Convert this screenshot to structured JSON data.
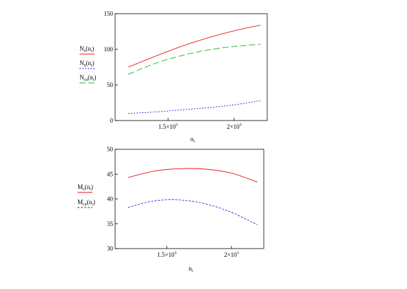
{
  "chart_data": [
    {
      "type": "line",
      "xlabel": "n",
      "xlabel_sub": "i",
      "xlim": [
        1100,
        2250
      ],
      "ylim": [
        0,
        150
      ],
      "x_ticks": [
        {
          "value": 1500,
          "mantissa": "1.5×10",
          "exp": "3"
        },
        {
          "value": 2000,
          "mantissa": "2×10",
          "exp": "3"
        }
      ],
      "y_ticks": [
        0,
        50,
        100,
        150
      ],
      "grid": false,
      "legend_position": "left",
      "x": [
        1200,
        1400,
        1600,
        1800,
        2000,
        2200
      ],
      "series": [
        {
          "name": "Ne(ni)",
          "sym": "N",
          "sub": "e",
          "arg": "n",
          "arg_sub": "i",
          "color": "#e8141b",
          "dash": "",
          "values": [
            75,
            90,
            104,
            116,
            126,
            134
          ]
        },
        {
          "name": "Nn(ni)",
          "sym": "N",
          "sub": "n",
          "arg": "n",
          "arg_sub": "i",
          "color": "#1f24d8",
          "dash": "2,2",
          "values": [
            10,
            12,
            15,
            18,
            22,
            28
          ]
        },
        {
          "name": "Ncn(ni)",
          "sym": "N",
          "sub": "cn",
          "arg": "n",
          "arg_sub": "i",
          "color": "#13b51a",
          "dash": "9,4",
          "values": [
            65,
            80,
            91,
            99,
            104,
            107
          ]
        }
      ]
    },
    {
      "type": "line",
      "xlabel": "n",
      "xlabel_sub": "i",
      "xlim": [
        1100,
        2250
      ],
      "ylim": [
        30,
        50
      ],
      "x_ticks": [
        {
          "value": 1500,
          "mantissa": "1.5×10",
          "exp": "3"
        },
        {
          "value": 2000,
          "mantissa": "2×10",
          "exp": "3"
        }
      ],
      "y_ticks": [
        30,
        35,
        40,
        45,
        50
      ],
      "grid": false,
      "legend_position": "left",
      "x": [
        1200,
        1400,
        1600,
        1800,
        2000,
        2200
      ],
      "series": [
        {
          "name": "Me(ni)",
          "sym": "M",
          "sub": "e",
          "arg": "n",
          "arg_sub": "i",
          "color": "#e8141b",
          "dash": "",
          "values": [
            44.3,
            45.6,
            46.1,
            46.0,
            45.2,
            43.4
          ]
        },
        {
          "name": "Mcn(ni)",
          "sym": "M",
          "sub": "cn",
          "arg": "n",
          "arg_sub": "i",
          "color": "#1f24d8",
          "dash": "3,2",
          "values": [
            38.3,
            39.6,
            39.8,
            39.0,
            37.3,
            34.8
          ]
        }
      ]
    }
  ]
}
